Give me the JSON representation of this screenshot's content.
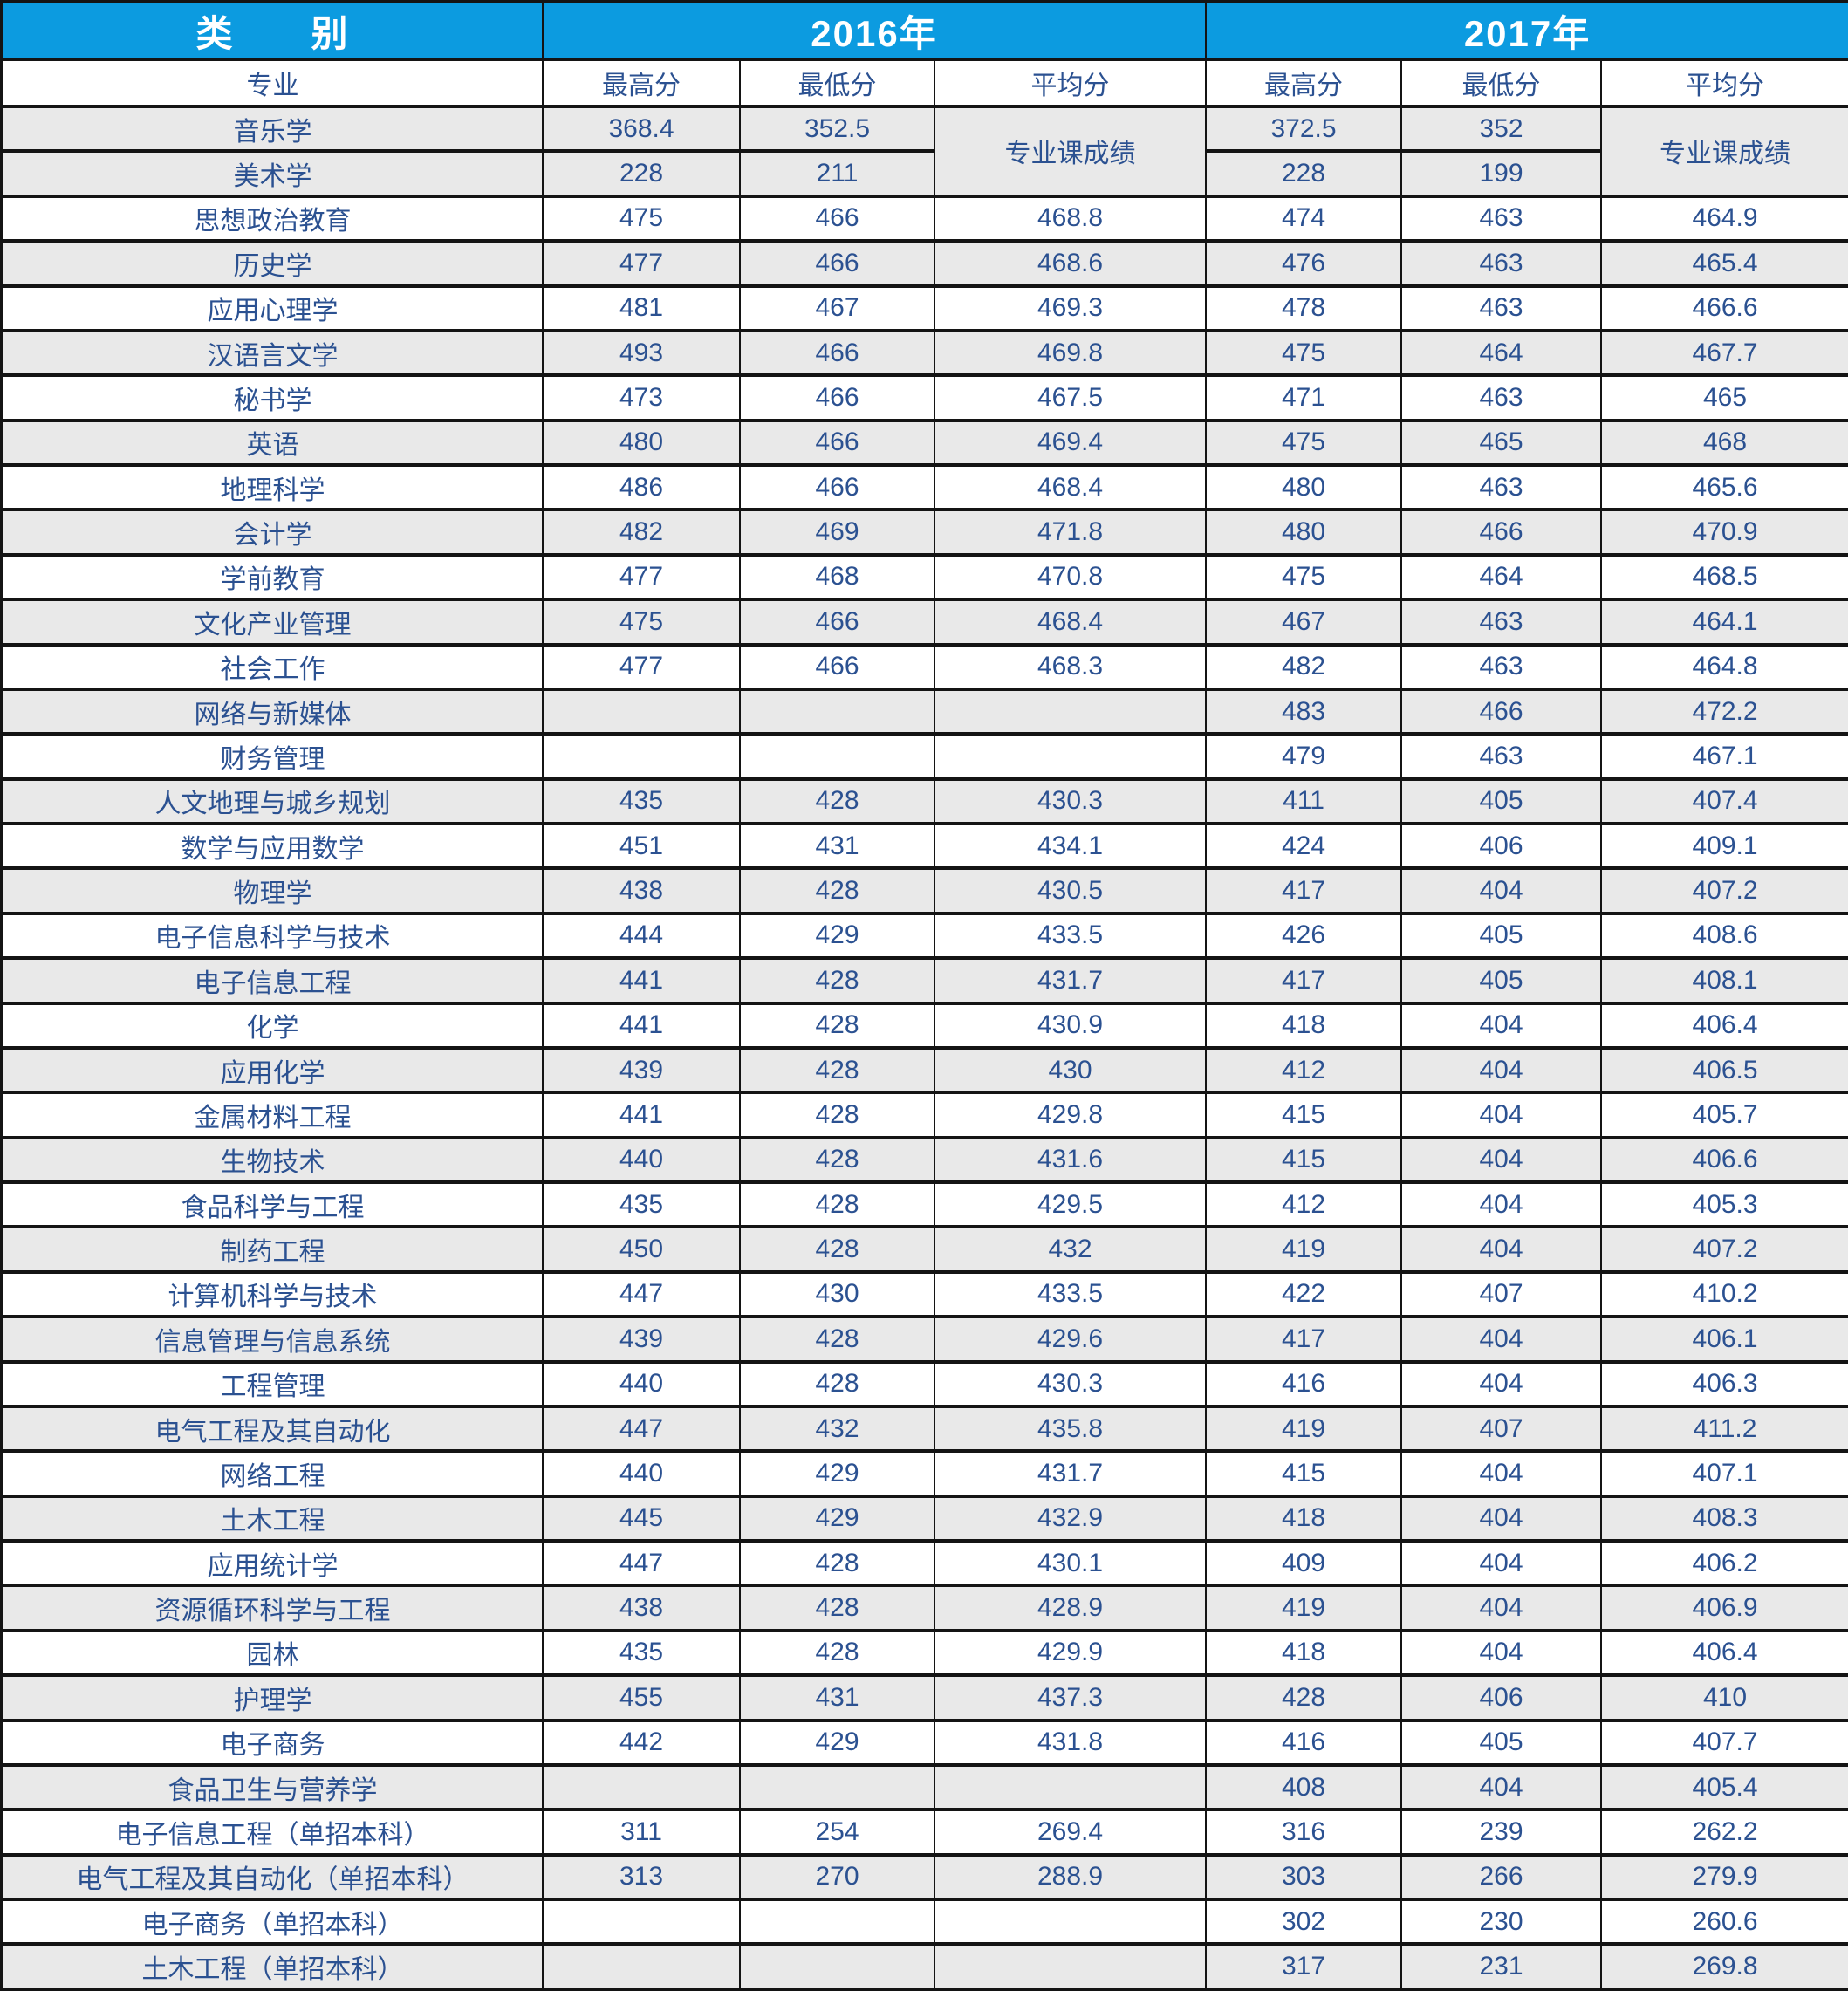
{
  "colors": {
    "header_bg": "#0c9be0",
    "header_text": "#ffffff",
    "body_text": "#2b5191",
    "row_shade": "#e9e9e9",
    "row_plain": "#ffffff",
    "border": "#141414"
  },
  "table": {
    "category_label": "类　　别",
    "years": [
      "2016年",
      "2017年"
    ],
    "sub_headers": [
      "专业",
      "最高分",
      "最低分",
      "平均分",
      "最高分",
      "最低分",
      "平均分"
    ],
    "merged_note": "专业课成绩",
    "rows": [
      {
        "cells": [
          "音乐学",
          "368.4",
          "352.5",
          "专业课成绩",
          "372.5",
          "352",
          "专业课成绩"
        ]
      },
      {
        "cells": [
          "美术学",
          "228",
          "211",
          "",
          "228",
          "199",
          ""
        ]
      },
      {
        "cells": [
          "思想政治教育",
          "475",
          "466",
          "468.8",
          "474",
          "463",
          "464.9"
        ]
      },
      {
        "cells": [
          "历史学",
          "477",
          "466",
          "468.6",
          "476",
          "463",
          "465.4"
        ]
      },
      {
        "cells": [
          "应用心理学",
          "481",
          "467",
          "469.3",
          "478",
          "463",
          "466.6"
        ]
      },
      {
        "cells": [
          "汉语言文学",
          "493",
          "466",
          "469.8",
          "475",
          "464",
          "467.7"
        ]
      },
      {
        "cells": [
          "秘书学",
          "473",
          "466",
          "467.5",
          "471",
          "463",
          "465"
        ]
      },
      {
        "cells": [
          "英语",
          "480",
          "466",
          "469.4",
          "475",
          "465",
          "468"
        ]
      },
      {
        "cells": [
          "地理科学",
          "486",
          "466",
          "468.4",
          "480",
          "463",
          "465.6"
        ]
      },
      {
        "cells": [
          "会计学",
          "482",
          "469",
          "471.8",
          "480",
          "466",
          "470.9"
        ]
      },
      {
        "cells": [
          "学前教育",
          "477",
          "468",
          "470.8",
          "475",
          "464",
          "468.5"
        ]
      },
      {
        "cells": [
          "文化产业管理",
          "475",
          "466",
          "468.4",
          "467",
          "463",
          "464.1"
        ]
      },
      {
        "cells": [
          "社会工作",
          "477",
          "466",
          "468.3",
          "482",
          "463",
          "464.8"
        ]
      },
      {
        "cells": [
          "网络与新媒体",
          "",
          "",
          "",
          "483",
          "466",
          "472.2"
        ]
      },
      {
        "cells": [
          "财务管理",
          "",
          "",
          "",
          "479",
          "463",
          "467.1"
        ]
      },
      {
        "cells": [
          "人文地理与城乡规划",
          "435",
          "428",
          "430.3",
          "411",
          "405",
          "407.4"
        ]
      },
      {
        "cells": [
          "数学与应用数学",
          "451",
          "431",
          "434.1",
          "424",
          "406",
          "409.1"
        ]
      },
      {
        "cells": [
          "物理学",
          "438",
          "428",
          "430.5",
          "417",
          "404",
          "407.2"
        ]
      },
      {
        "cells": [
          "电子信息科学与技术",
          "444",
          "429",
          "433.5",
          "426",
          "405",
          "408.6"
        ]
      },
      {
        "cells": [
          "电子信息工程",
          "441",
          "428",
          "431.7",
          "417",
          "405",
          "408.1"
        ]
      },
      {
        "cells": [
          "化学",
          "441",
          "428",
          "430.9",
          "418",
          "404",
          "406.4"
        ]
      },
      {
        "cells": [
          "应用化学",
          "439",
          "428",
          "430",
          "412",
          "404",
          "406.5"
        ]
      },
      {
        "cells": [
          "金属材料工程",
          "441",
          "428",
          "429.8",
          "415",
          "404",
          "405.7"
        ]
      },
      {
        "cells": [
          "生物技术",
          "440",
          "428",
          "431.6",
          "415",
          "404",
          "406.6"
        ]
      },
      {
        "cells": [
          "食品科学与工程",
          "435",
          "428",
          "429.5",
          "412",
          "404",
          "405.3"
        ]
      },
      {
        "cells": [
          "制药工程",
          "450",
          "428",
          "432",
          "419",
          "404",
          "407.2"
        ]
      },
      {
        "cells": [
          "计算机科学与技术",
          "447",
          "430",
          "433.5",
          "422",
          "407",
          "410.2"
        ]
      },
      {
        "cells": [
          "信息管理与信息系统",
          "439",
          "428",
          "429.6",
          "417",
          "404",
          "406.1"
        ]
      },
      {
        "cells": [
          "工程管理",
          "440",
          "428",
          "430.3",
          "416",
          "404",
          "406.3"
        ]
      },
      {
        "cells": [
          "电气工程及其自动化",
          "447",
          "432",
          "435.8",
          "419",
          "407",
          "411.2"
        ]
      },
      {
        "cells": [
          "网络工程",
          "440",
          "429",
          "431.7",
          "415",
          "404",
          "407.1"
        ]
      },
      {
        "cells": [
          "土木工程",
          "445",
          "429",
          "432.9",
          "418",
          "404",
          "408.3"
        ]
      },
      {
        "cells": [
          "应用统计学",
          "447",
          "428",
          "430.1",
          "409",
          "404",
          "406.2"
        ]
      },
      {
        "cells": [
          "资源循环科学与工程",
          "438",
          "428",
          "428.9",
          "419",
          "404",
          "406.9"
        ]
      },
      {
        "cells": [
          "园林",
          "435",
          "428",
          "429.9",
          "418",
          "404",
          "406.4"
        ]
      },
      {
        "cells": [
          "护理学",
          "455",
          "431",
          "437.3",
          "428",
          "406",
          "410"
        ]
      },
      {
        "cells": [
          "电子商务",
          "442",
          "429",
          "431.8",
          "416",
          "405",
          "407.7"
        ]
      },
      {
        "cells": [
          "食品卫生与营养学",
          "",
          "",
          "",
          "408",
          "404",
          "405.4"
        ]
      },
      {
        "cells": [
          "电子信息工程（单招本科）",
          "311",
          "254",
          "269.4",
          "316",
          "239",
          "262.2"
        ]
      },
      {
        "cells": [
          "电气工程及其自动化（单招本科）",
          "313",
          "270",
          "288.9",
          "303",
          "266",
          "279.9"
        ]
      },
      {
        "cells": [
          "电子商务（单招本科）",
          "",
          "",
          "",
          "302",
          "230",
          "260.6"
        ]
      },
      {
        "cells": [
          "土木工程（单招本科）",
          "",
          "",
          "",
          "317",
          "231",
          "269.8"
        ]
      }
    ]
  }
}
